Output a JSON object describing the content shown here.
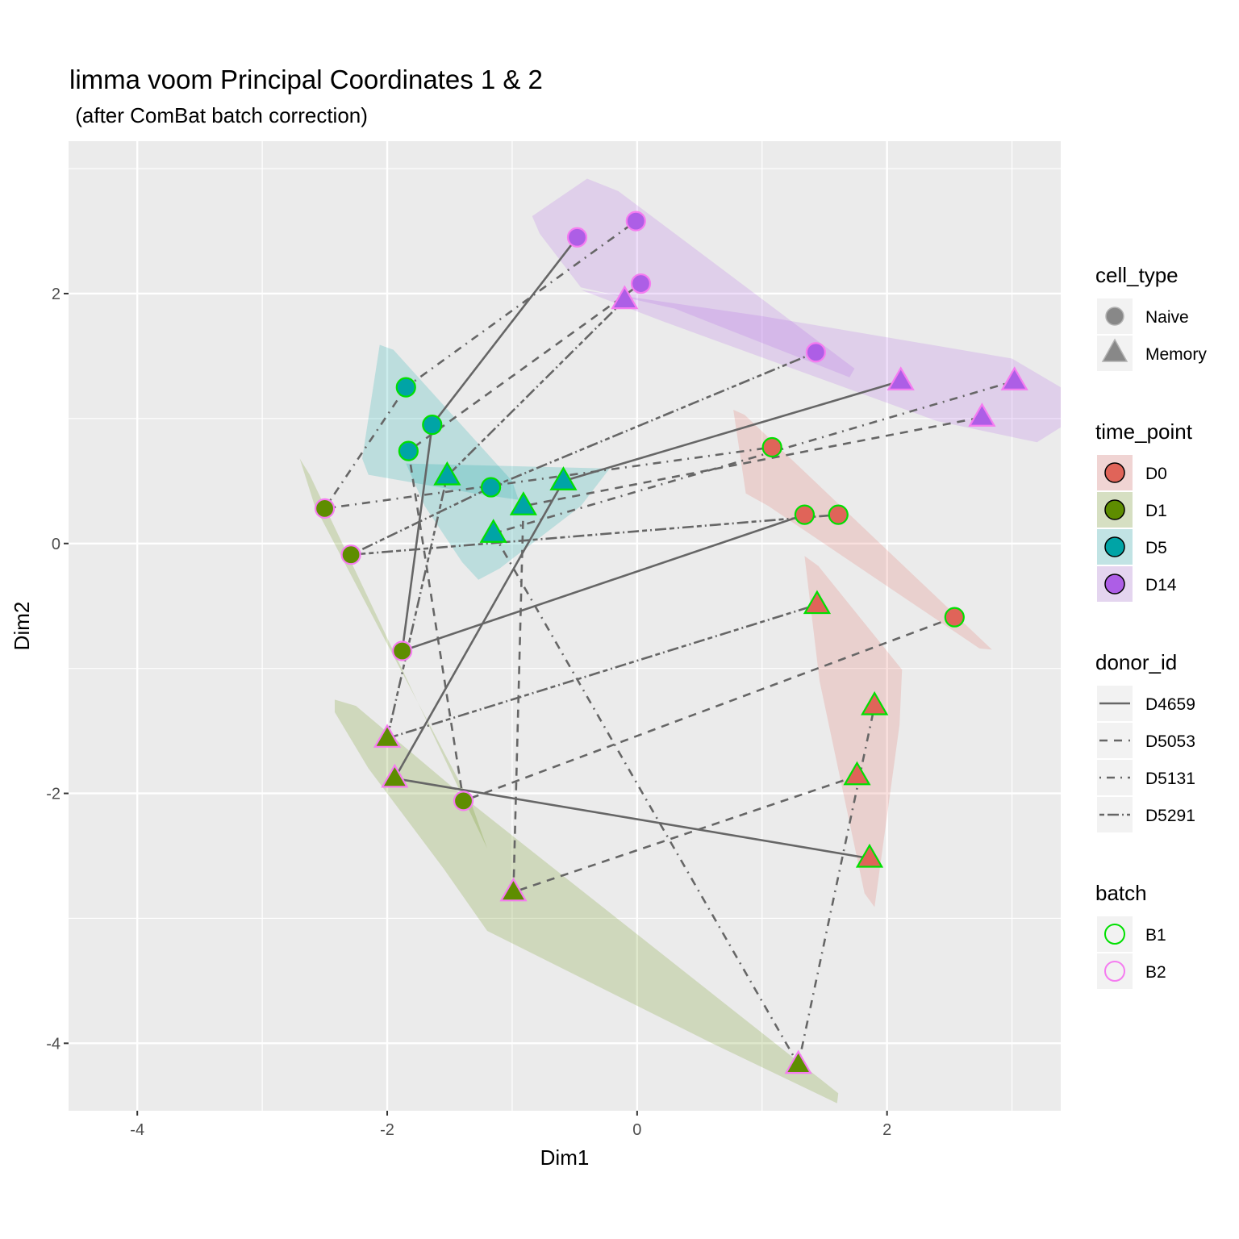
{
  "chart_data": {
    "type": "scatter",
    "title": "limma voom Principal Coordinates 1 & 2",
    "subtitle": " (after ComBat batch correction)",
    "xlabel": "Dim1",
    "ylabel": "Dim2",
    "xlim": [
      -4.55,
      3.39
    ],
    "ylim": [
      -4.54,
      3.22
    ],
    "x_ticks": [
      -4,
      -2,
      0,
      2
    ],
    "x_tick_labels": [
      "-4",
      "-2",
      "0",
      "2"
    ],
    "y_ticks": [
      2,
      0,
      -2,
      -4
    ],
    "y_tick_labels": [
      "2",
      "0",
      "-2",
      "-4"
    ],
    "minor_x": [
      -3,
      -1,
      1,
      3
    ],
    "minor_y": [
      3,
      1,
      -1,
      -3
    ],
    "grid": true,
    "colors": {
      "panel_bg": "#ebebeb",
      "grid": "#ffffff",
      "line": "#666666",
      "D0": "#e06459",
      "D1": "#5e8d00",
      "D5": "#00a4a6",
      "D14": "#ad5ee6",
      "B1": "#00e000",
      "B2": "#f57cf0"
    },
    "points": [
      {
        "time_point": "D0",
        "cell_type": "Naive",
        "batch": "B1",
        "donor_id": "D4659",
        "x": 1.34,
        "y": 0.23
      },
      {
        "time_point": "D0",
        "cell_type": "Naive",
        "batch": "B1",
        "donor_id": "D5053",
        "x": 2.54,
        "y": -0.59
      },
      {
        "time_point": "D0",
        "cell_type": "Naive",
        "batch": "B1",
        "donor_id": "D5131",
        "x": 1.08,
        "y": 0.77
      },
      {
        "time_point": "D0",
        "cell_type": "Naive",
        "batch": "B1",
        "donor_id": "D5291",
        "x": 1.61,
        "y": 0.23
      },
      {
        "time_point": "D0",
        "cell_type": "Memory",
        "batch": "B1",
        "donor_id": "D4659",
        "x": 1.86,
        "y": -2.52
      },
      {
        "time_point": "D0",
        "cell_type": "Memory",
        "batch": "B1",
        "donor_id": "D5053",
        "x": 1.76,
        "y": -1.86
      },
      {
        "time_point": "D0",
        "cell_type": "Memory",
        "batch": "B1",
        "donor_id": "D5131",
        "x": 1.9,
        "y": -1.3
      },
      {
        "time_point": "D0",
        "cell_type": "Memory",
        "batch": "B1",
        "donor_id": "D5291",
        "x": 1.44,
        "y": -0.49
      },
      {
        "time_point": "D1",
        "cell_type": "Naive",
        "batch": "B2",
        "donor_id": "D4659",
        "x": -1.88,
        "y": -0.86
      },
      {
        "time_point": "D1",
        "cell_type": "Naive",
        "batch": "B2",
        "donor_id": "D5053",
        "x": -1.39,
        "y": -2.06
      },
      {
        "time_point": "D1",
        "cell_type": "Naive",
        "batch": "B2",
        "donor_id": "D5131",
        "x": -2.5,
        "y": 0.28
      },
      {
        "time_point": "D1",
        "cell_type": "Naive",
        "batch": "B2",
        "donor_id": "D5291",
        "x": -2.29,
        "y": -0.09
      },
      {
        "time_point": "D1",
        "cell_type": "Memory",
        "batch": "B2",
        "donor_id": "D4659",
        "x": -1.94,
        "y": -1.88
      },
      {
        "time_point": "D1",
        "cell_type": "Memory",
        "batch": "B2",
        "donor_id": "D5053",
        "x": -0.99,
        "y": -2.79
      },
      {
        "time_point": "D1",
        "cell_type": "Memory",
        "batch": "B2",
        "donor_id": "D5131",
        "x": 1.29,
        "y": -4.17
      },
      {
        "time_point": "D1",
        "cell_type": "Memory",
        "batch": "B2",
        "donor_id": "D5291",
        "x": -2.0,
        "y": -1.56
      },
      {
        "time_point": "D5",
        "cell_type": "Naive",
        "batch": "B1",
        "donor_id": "D4659",
        "x": -1.64,
        "y": 0.95
      },
      {
        "time_point": "D5",
        "cell_type": "Naive",
        "batch": "B1",
        "donor_id": "D5053",
        "x": -1.83,
        "y": 0.74
      },
      {
        "time_point": "D5",
        "cell_type": "Naive",
        "batch": "B1",
        "donor_id": "D5131",
        "x": -1.85,
        "y": 1.25
      },
      {
        "time_point": "D5",
        "cell_type": "Naive",
        "batch": "B1",
        "donor_id": "D5291",
        "x": -1.17,
        "y": 0.45
      },
      {
        "time_point": "D5",
        "cell_type": "Memory",
        "batch": "B1",
        "donor_id": "D4659",
        "x": -0.59,
        "y": 0.5
      },
      {
        "time_point": "D5",
        "cell_type": "Memory",
        "batch": "B1",
        "donor_id": "D5053",
        "x": -0.91,
        "y": 0.3
      },
      {
        "time_point": "D5",
        "cell_type": "Memory",
        "batch": "B1",
        "donor_id": "D5131",
        "x": -1.15,
        "y": 0.08
      },
      {
        "time_point": "D5",
        "cell_type": "Memory",
        "batch": "B1",
        "donor_id": "D5291",
        "x": -1.52,
        "y": 0.54
      },
      {
        "time_point": "D14",
        "cell_type": "Naive",
        "batch": "B2",
        "donor_id": "D4659",
        "x": -0.48,
        "y": 2.45
      },
      {
        "time_point": "D14",
        "cell_type": "Naive",
        "batch": "B2",
        "donor_id": "D5053",
        "x": 0.03,
        "y": 2.08
      },
      {
        "time_point": "D14",
        "cell_type": "Naive",
        "batch": "B2",
        "donor_id": "D5131",
        "x": -0.01,
        "y": 2.58
      },
      {
        "time_point": "D14",
        "cell_type": "Naive",
        "batch": "B2",
        "donor_id": "D5291",
        "x": 1.43,
        "y": 1.53
      },
      {
        "time_point": "D14",
        "cell_type": "Memory",
        "batch": "B2",
        "donor_id": "D4659",
        "x": 2.11,
        "y": 1.3
      },
      {
        "time_point": "D14",
        "cell_type": "Memory",
        "batch": "B2",
        "donor_id": "D5053",
        "x": 2.76,
        "y": 1.01
      },
      {
        "time_point": "D14",
        "cell_type": "Memory",
        "batch": "B2",
        "donor_id": "D5131",
        "x": 3.02,
        "y": 1.3
      },
      {
        "time_point": "D14",
        "cell_type": "Memory",
        "batch": "B2",
        "donor_id": "D5291",
        "x": -0.1,
        "y": 1.95
      }
    ],
    "hulls": [
      {
        "time_point": "D1",
        "cell_type": "Naive",
        "polygon": [
          [
            -2.7,
            0.68
          ],
          [
            -2.62,
            0.55
          ],
          [
            -1.2,
            -2.44
          ],
          [
            -1.32,
            -2.1
          ],
          [
            -2.58,
            0.3
          ]
        ]
      },
      {
        "time_point": "D1",
        "cell_type": "Memory",
        "polygon": [
          [
            -2.42,
            -1.25
          ],
          [
            -2.25,
            -1.3
          ],
          [
            -1.3,
            -2.1
          ],
          [
            1.61,
            -4.4
          ],
          [
            1.6,
            -4.48
          ],
          [
            0.6,
            -4.0
          ],
          [
            -1.2,
            -3.1
          ],
          [
            -1.55,
            -2.6
          ],
          [
            -2.15,
            -1.8
          ],
          [
            -2.42,
            -1.35
          ]
        ]
      },
      {
        "time_point": "D5",
        "cell_type": "Naive",
        "polygon": [
          [
            -2.06,
            1.59
          ],
          [
            -1.95,
            1.55
          ],
          [
            -1.0,
            0.5
          ],
          [
            -0.95,
            0.35
          ],
          [
            -1.3,
            0.4
          ],
          [
            -2.15,
            0.55
          ],
          [
            -2.2,
            0.68
          ]
        ]
      },
      {
        "time_point": "D5",
        "cell_type": "Memory",
        "polygon": [
          [
            -1.85,
            0.64
          ],
          [
            -0.22,
            0.6
          ],
          [
            -0.45,
            0.3
          ],
          [
            -1.1,
            -0.2
          ],
          [
            -1.27,
            -0.29
          ],
          [
            -1.4,
            -0.15
          ],
          [
            -1.7,
            0.3
          ]
        ]
      },
      {
        "time_point": "D14",
        "cell_type": "Naive",
        "polygon": [
          [
            -0.84,
            2.62
          ],
          [
            -0.4,
            2.92
          ],
          [
            -0.15,
            2.82
          ],
          [
            1.74,
            1.4
          ],
          [
            1.7,
            1.33
          ],
          [
            0.3,
            1.88
          ],
          [
            -0.45,
            2.05
          ],
          [
            -0.78,
            2.48
          ]
        ]
      },
      {
        "time_point": "D14",
        "cell_type": "Memory",
        "polygon": [
          [
            -0.45,
            2.03
          ],
          [
            1.0,
            1.82
          ],
          [
            3.0,
            1.48
          ],
          [
            3.39,
            1.25
          ],
          [
            3.39,
            0.93
          ],
          [
            3.2,
            0.81
          ],
          [
            2.4,
            0.98
          ],
          [
            0.2,
            1.78
          ]
        ]
      },
      {
        "time_point": "D0",
        "cell_type": "Naive",
        "polygon": [
          [
            0.77,
            1.07
          ],
          [
            0.86,
            1.03
          ],
          [
            2.84,
            -0.85
          ],
          [
            2.74,
            -0.84
          ],
          [
            1.05,
            0.3
          ],
          [
            0.87,
            0.4
          ]
        ]
      },
      {
        "time_point": "D0",
        "cell_type": "Memory",
        "polygon": [
          [
            1.34,
            -0.1
          ],
          [
            1.45,
            -0.18
          ],
          [
            2.12,
            -1.01
          ],
          [
            2.1,
            -1.45
          ],
          [
            1.9,
            -2.91
          ],
          [
            1.82,
            -2.8
          ],
          [
            1.46,
            -1.1
          ]
        ]
      }
    ],
    "paths_order": [
      "D0",
      "D1",
      "D5",
      "D14"
    ],
    "legend": {
      "placement": "right",
      "cell_type": {
        "title": "cell_type",
        "items": [
          {
            "label": "Naive",
            "shape": "circle"
          },
          {
            "label": "Memory",
            "shape": "triangle"
          }
        ]
      },
      "time_point": {
        "title": "time_point",
        "items": [
          {
            "label": "D0"
          },
          {
            "label": "D1"
          },
          {
            "label": "D5"
          },
          {
            "label": "D14"
          }
        ]
      },
      "donor_id": {
        "title": "donor_id",
        "items": [
          {
            "label": "D4659",
            "linetype": "solid"
          },
          {
            "label": "D5053",
            "linetype": "dashed"
          },
          {
            "label": "D5131",
            "linetype": "dotdash"
          },
          {
            "label": "D5291",
            "linetype": "longdash-dot"
          }
        ]
      },
      "batch": {
        "title": "batch",
        "items": [
          {
            "label": "B1"
          },
          {
            "label": "B2"
          }
        ]
      }
    }
  }
}
